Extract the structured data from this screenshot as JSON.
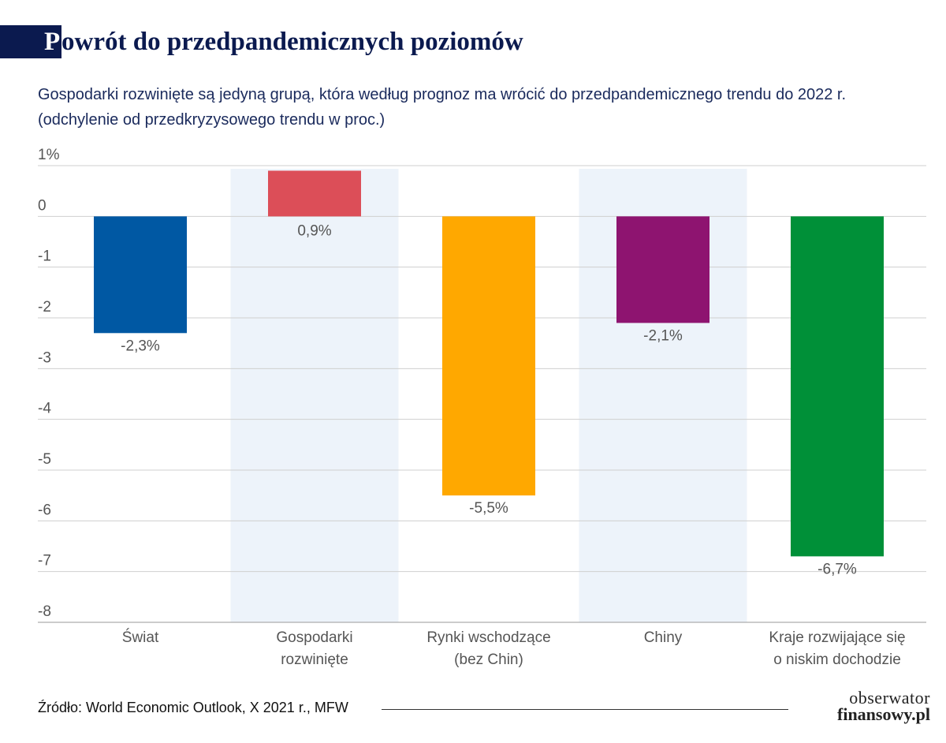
{
  "title_first": "P",
  "title_rest": "owrót do przedpandemicznych poziomów",
  "subtitle_line1": "Gospodarki rozwinięte są jedyną grupą, która według prognoz ma wrócić do przedpandemicznego trendu do 2022 r.",
  "subtitle_line2": "(odchylenie od przedkryzysowego trendu w proc.)",
  "source": "Źródło: World Economic Outlook, X 2021 r., MFW",
  "logo_line1": "obserwator",
  "logo_line2": "finansowy.pl",
  "chart_data": {
    "type": "bar",
    "title": "Powrót do przedpandemicznych poziomów",
    "ylabel": "odchylenie od przedkryzysowego trendu w proc.",
    "ylim": [
      -8,
      1
    ],
    "yticks": [
      1,
      0,
      -1,
      -2,
      -3,
      -4,
      -5,
      -6,
      -7,
      -8
    ],
    "ytick_labels": [
      "1%",
      "0",
      "-1",
      "-2",
      "-3",
      "-4",
      "-5",
      "-6",
      "-7",
      "-8"
    ],
    "categories": [
      [
        "Świat"
      ],
      [
        "Gospodarki",
        "rozwinięte"
      ],
      [
        "Rynki wschodzące",
        "(bez Chin)"
      ],
      [
        "Chiny"
      ],
      [
        "Kraje rozwijające się",
        "o niskim dochodzie"
      ]
    ],
    "values": [
      -2.3,
      0.9,
      -5.5,
      -2.1,
      -6.7
    ],
    "value_labels": [
      "-2,3%",
      "0,9%",
      "-5,5%",
      "-2,1%",
      "-6,7%"
    ],
    "colors": [
      "#0058a3",
      "#dc4e58",
      "#ffa800",
      "#8e1470",
      "#009038"
    ],
    "band_color": "#edf3fa",
    "grid": true
  }
}
